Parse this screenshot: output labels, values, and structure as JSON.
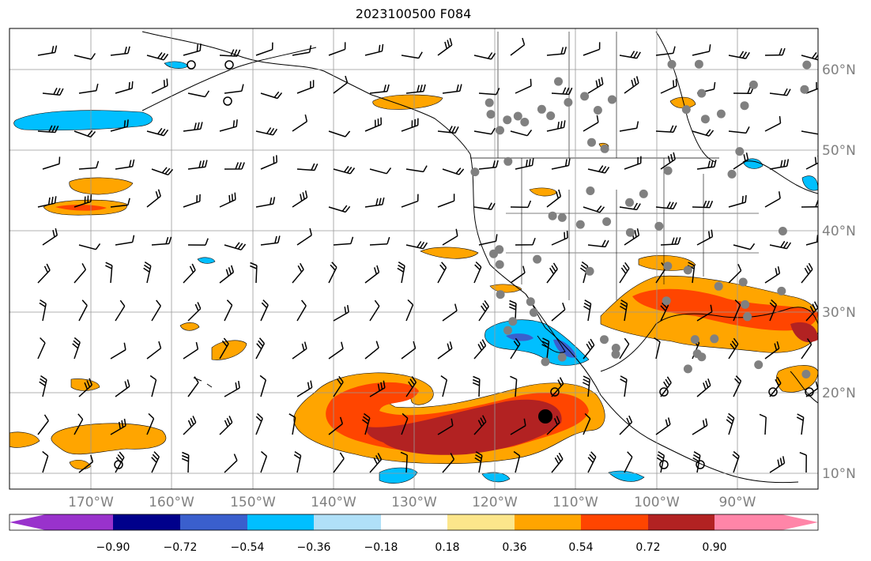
{
  "title": "2023100500 F084",
  "map": {
    "lon_labels": [
      "170°W",
      "160°W",
      "150°W",
      "140°W",
      "130°W",
      "120°W",
      "110°W",
      "100°W",
      "90°W"
    ],
    "lat_labels": [
      "60°N",
      "50°N",
      "40°N",
      "30°N",
      "20°N",
      "10°N"
    ],
    "grid": true,
    "projection": "equirectangular",
    "lon_range": [
      -180,
      -80
    ],
    "lat_range": [
      8,
      65
    ]
  },
  "colorbar": {
    "tick_labels": [
      "−0.90",
      "−0.72",
      "−0.54",
      "−0.36",
      "−0.18",
      "0.18",
      "0.36",
      "0.54",
      "0.72",
      "0.90"
    ],
    "colors": [
      "#9932cc",
      "#00008b",
      "#3a5fcd",
      "#00bfff",
      "#b0e0f8",
      "#ffffff",
      "#fce68b",
      "#ffa500",
      "#ff4500",
      "#b22222",
      "#ff85a8"
    ],
    "extend": "both"
  },
  "colors": {
    "grid": "#999999",
    "land_outline": "#000000",
    "station_dot": "#808080",
    "text_axis": "#808080"
  },
  "icons": [
    "wind-barb",
    "station-circle"
  ]
}
